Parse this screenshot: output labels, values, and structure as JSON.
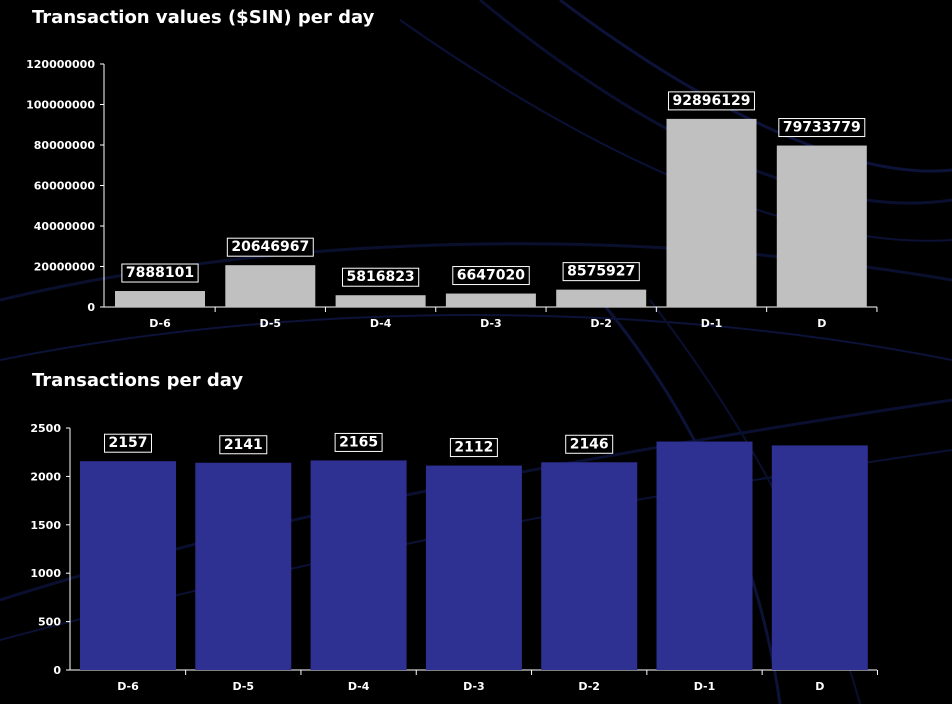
{
  "charts": [
    {
      "title": "Transaction values ($SIN) per day",
      "type": "bar",
      "categories": [
        "D-6",
        "D-5",
        "D-4",
        "D-3",
        "D-2",
        "D-1",
        "D"
      ],
      "values": [
        7888101,
        20646967,
        5816823,
        6647020,
        8575927,
        92896129,
        79733779
      ],
      "data_labels": [
        "7888101",
        "20646967",
        "5816823",
        "6647020",
        "8575927",
        "92896129",
        "79733779"
      ],
      "yticks": [
        0,
        20000000,
        40000000,
        60000000,
        80000000,
        100000000,
        120000000
      ],
      "ylim": [
        0,
        120000000
      ],
      "bar_color": "#c0c0c0"
    },
    {
      "title": "Transactions per day",
      "type": "bar",
      "categories": [
        "D-6",
        "D-5",
        "D-4",
        "D-3",
        "D-2",
        "D-1",
        "D"
      ],
      "values": [
        2157,
        2141,
        2165,
        2112,
        2146,
        2360,
        2320
      ],
      "data_labels": [
        "2157",
        "2141",
        "2165",
        "2112",
        "2146",
        null,
        null
      ],
      "yticks": [
        0,
        500,
        1000,
        1500,
        2000,
        2500
      ],
      "ylim": [
        0,
        2500
      ],
      "bar_color": "#2e3191"
    }
  ],
  "chart_data": [
    {
      "type": "bar",
      "title": "Transaction values ($SIN) per day",
      "categories": [
        "D-6",
        "D-5",
        "D-4",
        "D-3",
        "D-2",
        "D-1",
        "D"
      ],
      "values": [
        7888101,
        20646967,
        5816823,
        6647020,
        8575927,
        92896129,
        79733779
      ],
      "xlabel": "",
      "ylabel": "",
      "ylim": [
        0,
        120000000
      ],
      "grid": false,
      "legend": "none"
    },
    {
      "type": "bar",
      "title": "Transactions per day",
      "categories": [
        "D-6",
        "D-5",
        "D-4",
        "D-3",
        "D-2",
        "D-1",
        "D"
      ],
      "values": [
        2157,
        2141,
        2165,
        2112,
        2146,
        2360,
        2320
      ],
      "xlabel": "",
      "ylabel": "",
      "ylim": [
        0,
        2500
      ],
      "grid": false,
      "legend": "none"
    }
  ]
}
